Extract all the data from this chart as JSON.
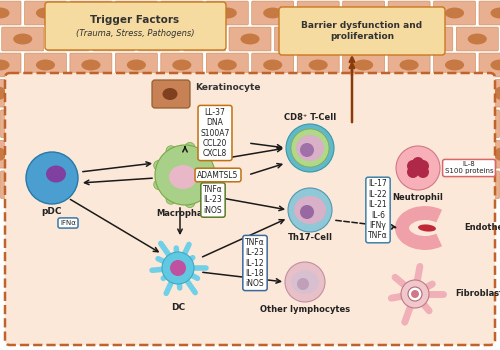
{
  "bg_color": "#ffffff",
  "skin_cell_color": "#e8b090",
  "skin_cell_edge": "#cc8855",
  "skin_nucleus_color": "#c07035",
  "inner_bg": "#fce8d8",
  "inner_border": "#c0632a",
  "trigger_box": "#f5dba0",
  "trigger_border": "#c87820",
  "labels": {
    "trigger": "Trigger Factors",
    "trigger_sub": "(Trauma, Stress, Pathogens)",
    "barrier": "Barrier dysfunction and\nproliferation",
    "keratinocyte": "Keratinocyte",
    "pDC": "pDC",
    "IFNa": "IFNα",
    "Macrophage": "Macrophage",
    "DC": "DC",
    "CD8": "CD8⁺ T-Cell",
    "Th17": "Th17-Cell",
    "Other": "Other lymphocytes",
    "Neutrophil": "Neutrophil",
    "Endothelium": "Endothelium",
    "Fibroblast": "Fibroblast",
    "ADAMTSL5": "ADAMTSL5",
    "mac_cytokines": "TNFα\nIL-23\niNOS",
    "dc_cytokines": "TNFα\nIL-23\nIL-12\nIL-18\niNOS",
    "kera_cytokines": "LL-37\nDNA\nS100A7\nCCL20\nCXCL8",
    "th17_cytokines": "IL-17\nIL-22\nIL-21\nIL-6\nIFNγ\nTNFα",
    "neutrophil_cytokines": "IL-8\nS100 proteins"
  },
  "colors": {
    "pDC_outer": "#4a9fd0",
    "pDC_inner": "#8040a0",
    "macro_outer": "#a8d088",
    "macro_inner": "#e8b8c8",
    "DC_tentacle": "#70d0e8",
    "DC_body": "#60c8e0",
    "DC_inner": "#c050a0",
    "CD8_ring_outer": "#60b8c8",
    "CD8_ring_mid": "#b0d888",
    "CD8_inner": "#d8b0c8",
    "CD8_nucleus": "#a070a8",
    "Th17_outer": "#90c8d8",
    "Th17_inner": "#d8b0c8",
    "Th17_nucleus": "#9868a0",
    "Other_outer": "#e8c0c8",
    "Other_inner": "#d8c0d0",
    "Other_nucleus": "#c0a0b8",
    "Neutrophil_outer": "#f8b0b8",
    "Neutrophil_nucleus": "#b02848",
    "Endothelium_color": "#f0a0a8",
    "Fibroblast_color": "#f0b0b8",
    "Fibroblast_body": "#f0c8cc",
    "mac_box": "#5a7c2a",
    "dc_box": "#3a6a9c",
    "kera_box": "#c07010",
    "th17_box": "#4080a8",
    "neutrophil_box": "#d86868",
    "arrow_color": "#1a1a1a",
    "barrier_arrow": "#8b3a0a"
  }
}
